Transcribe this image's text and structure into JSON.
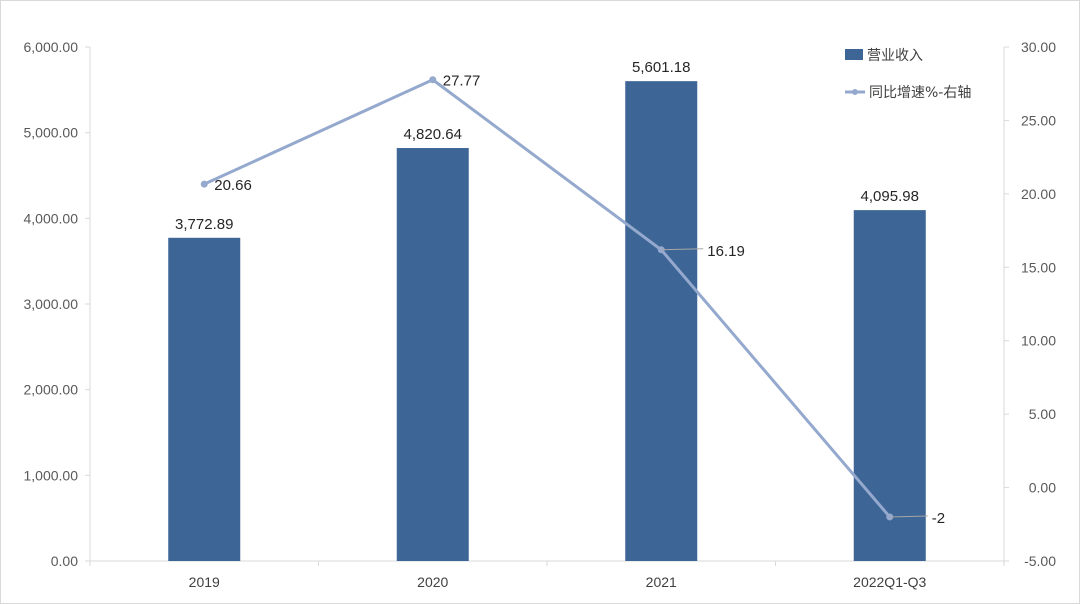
{
  "chart_data": {
    "type": "bar",
    "categories": [
      "2019",
      "2020",
      "2021",
      "2022Q1-Q3"
    ],
    "series": [
      {
        "name": "营业收入",
        "type": "bar",
        "axis": "left",
        "values": [
          3772.89,
          4820.64,
          5601.18,
          4095.98
        ],
        "labels": [
          "3,772.89",
          "4,820.64",
          "5,601.18",
          "4,095.98"
        ]
      },
      {
        "name": "同比增速%-右轴",
        "type": "line",
        "axis": "right",
        "values": [
          20.66,
          27.77,
          16.19,
          -2
        ],
        "labels": [
          "20.66",
          "27.77",
          "16.19",
          "-2"
        ]
      }
    ],
    "y_left": {
      "ylim": [
        0,
        6000
      ],
      "ticks": [
        0,
        1000,
        2000,
        3000,
        4000,
        5000,
        6000
      ],
      "tick_labels": [
        "0.00",
        "1,000.00",
        "2,000.00",
        "3,000.00",
        "4,000.00",
        "5,000.00",
        "6,000.00"
      ]
    },
    "y_right": {
      "ylim": [
        -5,
        30
      ],
      "ticks": [
        -5,
        0,
        5,
        10,
        15,
        20,
        25,
        30
      ],
      "tick_labels": [
        "-5.00",
        "0.00",
        "5.00",
        "10.00",
        "15.00",
        "20.00",
        "25.00",
        "30.00"
      ]
    },
    "colors": {
      "bar": "#3d6595",
      "line": "#94a9cd"
    },
    "legend_position": "top-right",
    "grid": false
  }
}
